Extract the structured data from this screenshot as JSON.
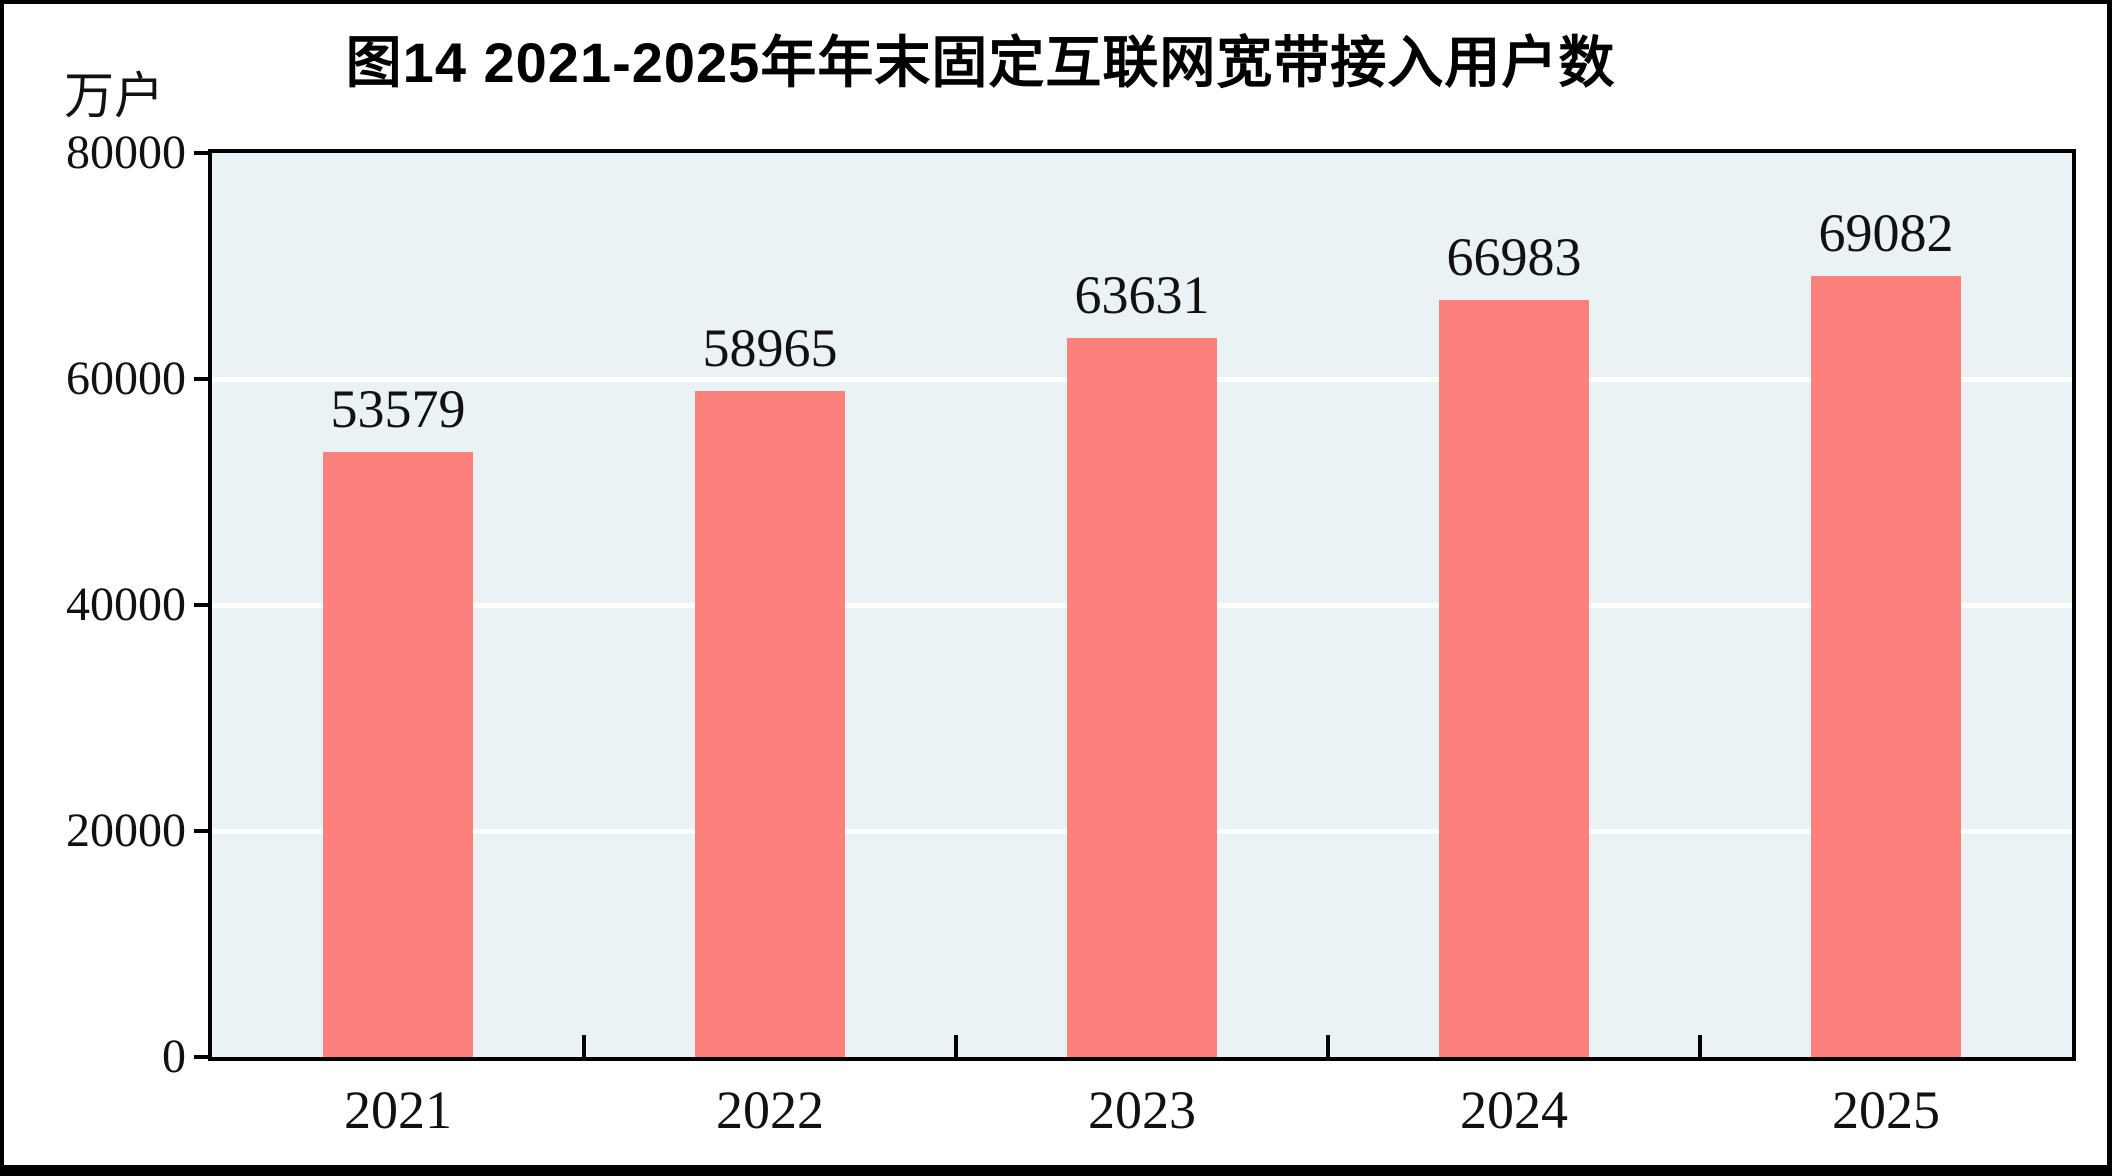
{
  "figure": {
    "title": "图14  2021-2025年年末固定互联网宽带接入用户数",
    "unit_label": "万户"
  },
  "chart_data": {
    "type": "bar",
    "title": "图14  2021-2025年年末固定互联网宽带接入用户数",
    "ylabel": "万户",
    "xlabel": "",
    "categories": [
      "2021",
      "2022",
      "2023",
      "2024",
      "2025"
    ],
    "values": [
      53579,
      58965,
      63631,
      66983,
      69082
    ],
    "ylim": [
      0,
      80000
    ],
    "yticks": [
      0,
      20000,
      40000,
      60000,
      80000
    ],
    "grid": "horizontal",
    "legend": "none",
    "colors": {
      "bar": "#FC817C",
      "plot_background": "#EBF2F6",
      "gridline": "#FFFFFF",
      "axis": "#000000",
      "text": "#111111",
      "outer_background": "#FFFFFF"
    }
  }
}
